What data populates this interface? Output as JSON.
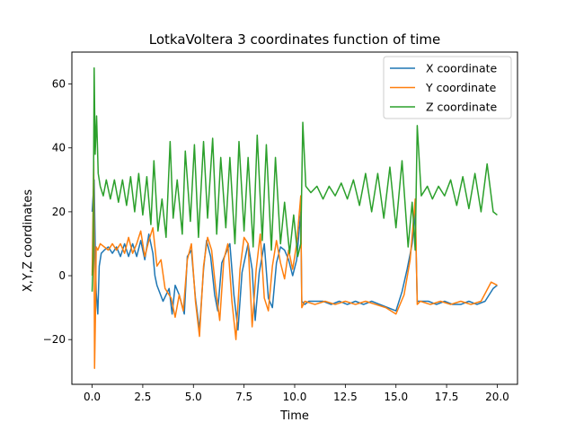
{
  "chart_data": {
    "type": "line",
    "title": "LotkaVoltera 3 coordinates function of time",
    "xlabel": "Time",
    "ylabel": "X,Y,Z coordinates",
    "xlim": [
      -1.0,
      21.0
    ],
    "ylim": [
      -34.0,
      70.0
    ],
    "xticks": [
      0.0,
      2.5,
      5.0,
      7.5,
      10.0,
      12.5,
      15.0,
      17.5,
      20.0
    ],
    "xtick_labels": [
      "0.0",
      "2.5",
      "5.0",
      "7.5",
      "10.0",
      "12.5",
      "15.0",
      "17.5",
      "20.0"
    ],
    "yticks": [
      -20,
      0,
      20,
      40,
      60
    ],
    "ytick_labels": [
      "−20",
      "0",
      "20",
      "40",
      "60"
    ],
    "grid": false,
    "legend": "top-right",
    "series": [
      {
        "name": "X coordinate",
        "color": "#1f77b4",
        "x": [
          0.0,
          0.1,
          0.15,
          0.2,
          0.28,
          0.35,
          0.45,
          0.6,
          0.8,
          1.0,
          1.2,
          1.4,
          1.6,
          1.8,
          2.0,
          2.2,
          2.4,
          2.6,
          2.8,
          3.0,
          3.1,
          3.2,
          3.5,
          3.8,
          3.95,
          4.1,
          4.3,
          4.55,
          4.7,
          4.9,
          5.1,
          5.3,
          5.5,
          5.65,
          5.85,
          6.05,
          6.2,
          6.4,
          6.6,
          6.8,
          7.0,
          7.2,
          7.4,
          7.7,
          7.9,
          8.05,
          8.25,
          8.5,
          8.7,
          8.9,
          9.1,
          9.3,
          9.5,
          9.7,
          9.9,
          10.1,
          10.3,
          10.35,
          10.5,
          10.7,
          11.0,
          11.4,
          11.8,
          12.2,
          12.6,
          13.0,
          13.4,
          13.8,
          14.2,
          14.6,
          15.0,
          15.3,
          15.55,
          15.8,
          15.95,
          16.05,
          16.2,
          16.6,
          17.0,
          17.4,
          17.8,
          18.2,
          18.6,
          19.0,
          19.4,
          19.8,
          20.0
        ],
        "y": [
          20,
          30,
          10,
          -5,
          -12,
          3,
          7,
          8,
          9,
          7,
          9,
          6,
          10,
          6,
          10,
          6,
          11,
          5,
          13,
          7,
          0,
          -3,
          -8,
          -4,
          -12,
          -3,
          -6,
          -12,
          6,
          8,
          -7,
          -17,
          2,
          11,
          6,
          -6,
          -11,
          4,
          7,
          10,
          -6,
          -17,
          1,
          10,
          2,
          -14,
          1,
          10,
          -7,
          -10,
          4,
          9,
          8,
          5,
          0,
          5,
          20,
          -8,
          -9,
          -8,
          -8,
          -8,
          -9,
          -8,
          -9,
          -8,
          -9,
          -8,
          -9,
          -10,
          -11,
          -5,
          2,
          10,
          20,
          -8,
          -8,
          -8,
          -9,
          -8,
          -9,
          -9,
          -8,
          -9,
          -8,
          -4,
          -3
        ]
      },
      {
        "name": "Y coordinate",
        "color": "#ff7f0e",
        "x": [
          0.0,
          0.08,
          0.12,
          0.17,
          0.2,
          0.28,
          0.4,
          0.6,
          0.8,
          1.0,
          1.2,
          1.4,
          1.6,
          1.8,
          2.0,
          2.2,
          2.4,
          2.6,
          2.8,
          3.0,
          3.2,
          3.4,
          3.6,
          3.9,
          4.1,
          4.3,
          4.5,
          4.7,
          4.9,
          5.1,
          5.3,
          5.5,
          5.7,
          5.9,
          6.1,
          6.3,
          6.5,
          6.7,
          6.9,
          7.1,
          7.3,
          7.5,
          7.7,
          7.9,
          8.1,
          8.3,
          8.5,
          8.7,
          8.9,
          9.1,
          9.3,
          9.5,
          9.7,
          9.9,
          10.1,
          10.3,
          10.35,
          10.5,
          11.0,
          11.5,
          12.0,
          12.5,
          13.0,
          13.5,
          14.0,
          14.5,
          15.0,
          15.4,
          15.7,
          15.95,
          16.05,
          16.2,
          16.7,
          17.2,
          17.7,
          18.2,
          18.7,
          19.2,
          19.7,
          20.0
        ],
        "y": [
          0,
          36,
          -29,
          -10,
          9,
          8,
          10,
          9,
          8,
          10,
          8,
          10,
          7,
          12,
          7,
          10,
          14,
          6,
          11,
          15,
          3,
          5,
          -4,
          -7,
          -13,
          -6,
          -11,
          5,
          10,
          -8,
          -19,
          3,
          12,
          8,
          -4,
          -14,
          5,
          10,
          -8,
          -20,
          2,
          12,
          10,
          -16,
          2,
          13,
          -7,
          -11,
          3,
          11,
          4,
          -1,
          8,
          2,
          10,
          25,
          -10,
          -8,
          -9,
          -8,
          -9,
          -8,
          -9,
          -8,
          -9,
          -10,
          -12,
          -6,
          5,
          24,
          -9,
          -8,
          -9,
          -8,
          -9,
          -8,
          -9,
          -8,
          -2,
          -3
        ]
      },
      {
        "name": "Z coordinate",
        "color": "#2ca02c",
        "x": [
          0.0,
          0.05,
          0.1,
          0.15,
          0.22,
          0.3,
          0.4,
          0.55,
          0.7,
          0.9,
          1.1,
          1.3,
          1.5,
          1.7,
          1.9,
          2.1,
          2.3,
          2.5,
          2.7,
          2.9,
          3.05,
          3.25,
          3.45,
          3.65,
          3.85,
          4.0,
          4.2,
          4.45,
          4.6,
          4.85,
          5.05,
          5.25,
          5.5,
          5.7,
          5.95,
          6.15,
          6.35,
          6.6,
          6.8,
          7.05,
          7.25,
          7.5,
          7.7,
          7.95,
          8.15,
          8.4,
          8.6,
          8.85,
          9.05,
          9.3,
          9.5,
          9.75,
          9.95,
          10.15,
          10.3,
          10.4,
          10.55,
          10.8,
          11.1,
          11.4,
          11.7,
          12.0,
          12.3,
          12.6,
          12.9,
          13.2,
          13.5,
          13.8,
          14.1,
          14.4,
          14.7,
          15.0,
          15.3,
          15.6,
          15.8,
          15.95,
          16.05,
          16.25,
          16.55,
          16.8,
          17.1,
          17.4,
          17.7,
          18.0,
          18.3,
          18.6,
          18.9,
          19.2,
          19.5,
          19.8,
          20.0
        ],
        "y": [
          -5,
          5,
          65,
          38,
          50,
          32,
          28,
          25,
          30,
          24,
          30,
          23,
          30,
          22,
          31,
          20,
          32,
          19,
          31,
          16,
          36,
          14,
          24,
          12,
          42,
          18,
          30,
          13,
          39,
          17,
          41,
          12,
          42,
          18,
          43,
          13,
          37,
          15,
          37,
          10,
          42,
          14,
          37,
          9,
          44,
          11,
          41,
          8,
          37,
          10,
          23,
          7,
          19,
          6,
          10,
          48,
          28,
          26,
          28,
          24,
          28,
          25,
          29,
          24,
          30,
          22,
          32,
          20,
          32,
          18,
          34,
          15,
          36,
          9,
          23,
          8,
          47,
          25,
          28,
          24,
          28,
          25,
          30,
          22,
          31,
          21,
          32,
          20,
          35,
          20,
          19
        ]
      }
    ]
  }
}
